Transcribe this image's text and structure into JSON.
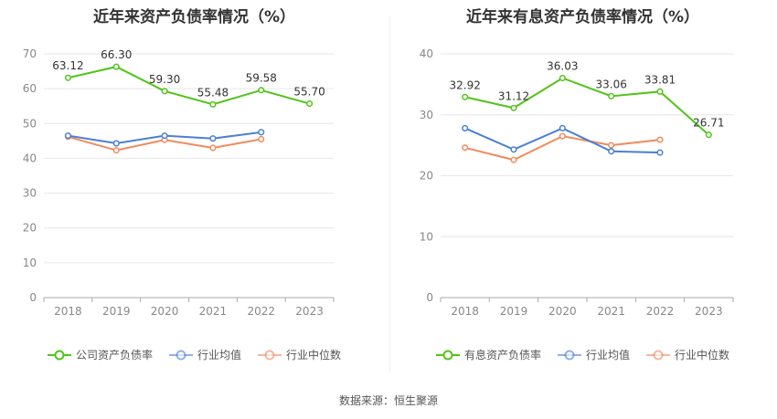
{
  "colors": {
    "main": "#52c41a",
    "avg": "#4a7fd6",
    "median": "#f08a5d",
    "grid": "#e6e6e6",
    "axis": "#aaaaaa",
    "tick": "#888888",
    "label": "#333333"
  },
  "source_text": "数据来源：恒生聚源",
  "chart_data": [
    {
      "type": "line",
      "title": "近年来资产负债率情况（%）",
      "categories": [
        "2018",
        "2019",
        "2020",
        "2021",
        "2022",
        "2023"
      ],
      "ylim": [
        0,
        70
      ],
      "yticks": [
        0,
        10,
        20,
        30,
        40,
        50,
        60,
        70
      ],
      "grid": true,
      "legend_position": "bottom",
      "series": [
        {
          "name": "公司资产负债率",
          "color": "#52c41a",
          "values": [
            63.12,
            66.3,
            59.3,
            55.48,
            59.58,
            55.7
          ],
          "labels": [
            "63.12",
            "66.30",
            "59.30",
            "55.48",
            "59.58",
            "55.70"
          ]
        },
        {
          "name": "行业均值",
          "color": "#4a7fd6",
          "values": [
            46.5,
            44.3,
            46.5,
            45.7,
            47.5,
            null
          ]
        },
        {
          "name": "行业中位数",
          "color": "#f08a5d",
          "values": [
            46.2,
            42.3,
            45.3,
            43.0,
            45.5,
            null
          ]
        }
      ]
    },
    {
      "type": "line",
      "title": "近年来有息资产负债率情况（%）",
      "categories": [
        "2018",
        "2019",
        "2020",
        "2021",
        "2022",
        "2023"
      ],
      "ylim": [
        0,
        40
      ],
      "yticks": [
        0,
        10,
        20,
        30,
        40
      ],
      "grid": true,
      "legend_position": "bottom",
      "series": [
        {
          "name": "有息资产负债率",
          "color": "#52c41a",
          "values": [
            32.92,
            31.12,
            36.03,
            33.06,
            33.81,
            26.71
          ],
          "labels": [
            "32.92",
            "31.12",
            "36.03",
            "33.06",
            "33.81",
            "26.71"
          ]
        },
        {
          "name": "行业均值",
          "color": "#4a7fd6",
          "values": [
            27.8,
            24.3,
            27.8,
            24.0,
            23.8,
            null
          ]
        },
        {
          "name": "行业中位数",
          "color": "#f08a5d",
          "values": [
            24.6,
            22.6,
            26.5,
            25.0,
            25.9,
            null
          ]
        }
      ]
    }
  ]
}
